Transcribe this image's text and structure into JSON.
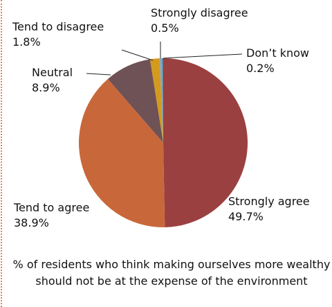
{
  "chart_data": {
    "type": "pie",
    "categories": [
      "Strongly agree",
      "Tend to agree",
      "Neutral",
      "Tend to disagree",
      "Strongly disagree",
      "Don’t know"
    ],
    "values": [
      49.7,
      38.9,
      8.9,
      1.8,
      0.5,
      0.2
    ],
    "value_labels": [
      "49.7%",
      "38.9%",
      "8.9%",
      "1.8%",
      "0.5%",
      "0.2%"
    ],
    "colors": [
      "#9b4040",
      "#c8683a",
      "#6f5255",
      "#d39a1f",
      "#8fa3b0",
      "#4f7fa8"
    ],
    "start": "12 o'clock, clockwise",
    "caption": "% of residents who think making ourselves more wealthy should not be at the expense of the environment"
  }
}
